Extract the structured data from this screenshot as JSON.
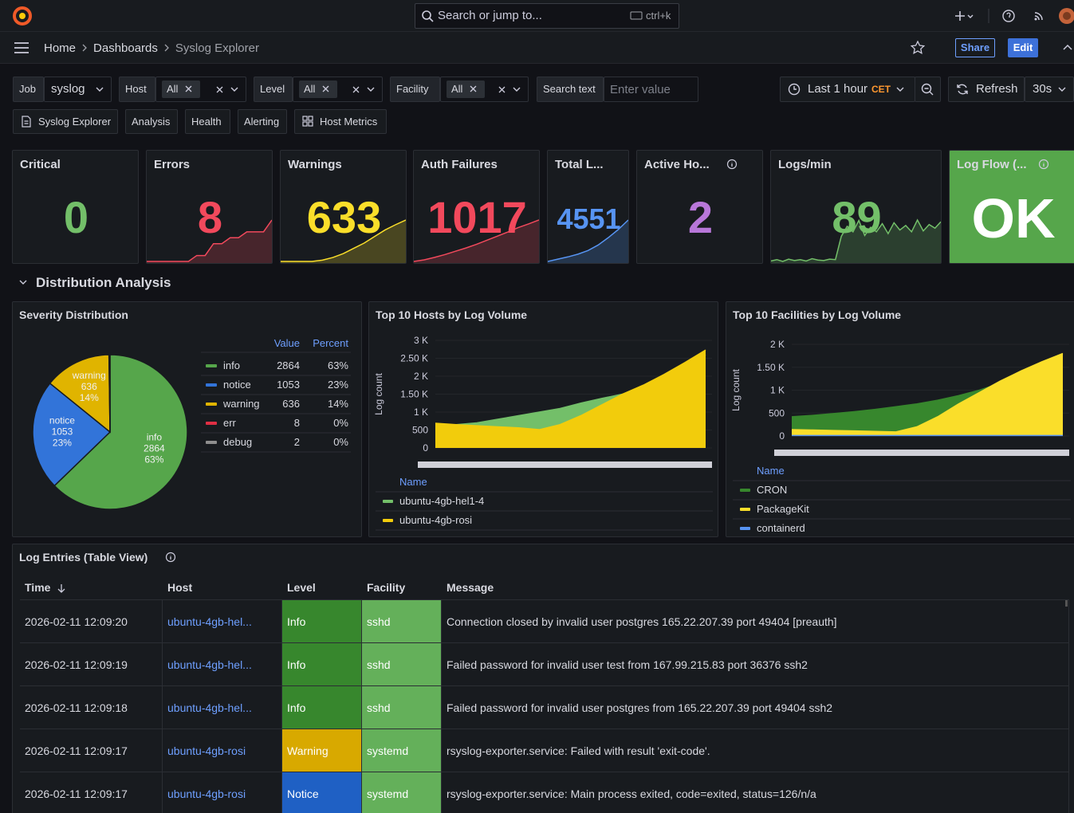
{
  "topbar": {
    "search_placeholder": "Search or jump to...",
    "shortcut": "ctrl+k"
  },
  "breadcrumbs": [
    "Home",
    "Dashboards",
    "Syslog Explorer"
  ],
  "actions": {
    "share": "Share",
    "edit": "Edit"
  },
  "variables": [
    {
      "label": "Job",
      "value": "syslog"
    },
    {
      "label": "Host",
      "value": "All"
    },
    {
      "label": "Level",
      "value": "All"
    },
    {
      "label": "Facility",
      "value": "All"
    }
  ],
  "search_text": {
    "label": "Search text",
    "placeholder": "Enter value"
  },
  "time_picker": {
    "range": "Last 1 hour",
    "timezone": "CET"
  },
  "refresh": {
    "label": "Refresh",
    "interval": "30s"
  },
  "links": [
    "Syslog Explorer",
    "Analysis",
    "Health",
    "Alerting",
    "Host Metrics"
  ],
  "stats": [
    {
      "title": "Critical",
      "value": 0,
      "color": "#73bf69"
    },
    {
      "title": "Errors",
      "value": 8,
      "color": "#f2495c",
      "sparkline": [
        1,
        1,
        1,
        1,
        1,
        1,
        2,
        2,
        4,
        4,
        5,
        5,
        6,
        6,
        6,
        8
      ]
    },
    {
      "title": "Warnings",
      "value": 633,
      "color": "#fade2a",
      "sparkline": [
        0,
        0,
        0,
        0,
        20,
        60,
        120,
        200,
        280,
        380,
        480,
        560,
        633
      ]
    },
    {
      "title": "Auth Failures",
      "value": 1017,
      "color": "#f2495c",
      "sparkline": [
        0,
        40,
        100,
        170,
        250,
        330,
        420,
        520,
        620,
        720,
        830,
        920,
        1017
      ]
    },
    {
      "title": "Total L...",
      "value": 4551,
      "color": "#5794f2",
      "sparkline": [
        0,
        250,
        500,
        800,
        1200,
        1800,
        2600,
        3500,
        4551
      ]
    },
    {
      "title": "Active Ho...",
      "value": 2,
      "color": "#b877d9"
    },
    {
      "title": "Logs/min",
      "value": 89,
      "color": "#73bf69",
      "sparkline": [
        6,
        9,
        5,
        10,
        7,
        9,
        6,
        11,
        8,
        7,
        10,
        9,
        60,
        82,
        70,
        95,
        62,
        80,
        70,
        88,
        66,
        90,
        74,
        84,
        70,
        96,
        72,
        86,
        78,
        92
      ]
    },
    {
      "title": "Log Flow (...",
      "value": "OK",
      "background": "#56a64b"
    }
  ],
  "row": {
    "title": "Distribution Analysis"
  },
  "severity": {
    "chart_data": {
      "type": "pie",
      "title": "Severity Distribution",
      "legend_columns": [
        "Value",
        "Percent"
      ],
      "categories": [
        "info",
        "notice",
        "warning",
        "err",
        "debug"
      ],
      "values": [
        2864,
        1053,
        636,
        8,
        2
      ],
      "percents": [
        "63%",
        "23%",
        "14%",
        "0%",
        "0%"
      ],
      "colors": [
        "#56a64b",
        "#3274d9",
        "#e0b400",
        "#e02f44",
        "#8e8e8e"
      ]
    }
  },
  "hosts": {
    "chart_data": {
      "type": "area",
      "title": "Top 10 Hosts by Log Volume",
      "y_label": "Log count",
      "ylim": [
        0,
        3000
      ],
      "yticks": [
        0,
        500,
        {
          "value": 1000,
          "label": "1 K"
        },
        {
          "value": 1500,
          "label": "1.50 K"
        },
        {
          "value": 2000,
          "label": "2 K"
        },
        {
          "value": 2500,
          "label": "2.50 K"
        },
        {
          "value": 3000,
          "label": "3 K"
        }
      ],
      "grid": true,
      "legend_title": "Name",
      "series": [
        {
          "name": "ubuntu-4gb-hel1-4",
          "color": "#73bf69",
          "values": [
            650,
            650,
            700,
            800,
            900,
            1000,
            1100,
            1250,
            1380,
            1500,
            1700,
            1950,
            2250,
            2600
          ]
        },
        {
          "name": "ubuntu-4gb-rosi",
          "color": "#f2cc0c",
          "values": [
            690,
            650,
            620,
            590,
            560,
            510,
            650,
            900,
            1200,
            1500,
            1750,
            2050,
            2380,
            2730
          ]
        }
      ]
    }
  },
  "facilities": {
    "chart_data": {
      "type": "area",
      "title": "Top 10 Facilities by Log Volume",
      "y_label": "Log count",
      "ylim": [
        0,
        2000
      ],
      "yticks": [
        0,
        500,
        {
          "value": 1000,
          "label": "1 K"
        },
        {
          "value": 1500,
          "label": "1.50 K"
        },
        {
          "value": 2000,
          "label": "2 K"
        }
      ],
      "grid": true,
      "legend_title": "Name",
      "series": [
        {
          "name": "CRON",
          "color": "#37872d",
          "values": [
            420,
            450,
            490,
            530,
            580,
            640,
            700,
            780,
            880,
            1000,
            1150,
            1350,
            1550,
            1750
          ]
        },
        {
          "name": "PackageKit",
          "color": "#fade2a",
          "values": [
            140,
            130,
            120,
            110,
            100,
            90,
            200,
            420,
            700,
            950,
            1200,
            1420,
            1620,
            1800
          ]
        },
        {
          "name": "containerd",
          "color": "#5794f2",
          "values": [
            10,
            10,
            10,
            10,
            10,
            10,
            10,
            10,
            10,
            10,
            10,
            10,
            10,
            10
          ]
        }
      ]
    }
  },
  "log_table": {
    "title": "Log Entries (Table View)",
    "columns": [
      "Time",
      "Host",
      "Level",
      "Facility",
      "Message"
    ],
    "rows": [
      [
        "2026-02-11 12:09:20",
        "ubuntu-4gb-hel...",
        "Info",
        "sshd",
        "Connection closed by invalid user postgres 165.22.207.39 port 49404 [preauth]"
      ],
      [
        "2026-02-11 12:09:19",
        "ubuntu-4gb-hel...",
        "Info",
        "sshd",
        "Failed password for invalid user test from 167.99.215.83 port 36376 ssh2"
      ],
      [
        "2026-02-11 12:09:18",
        "ubuntu-4gb-hel...",
        "Info",
        "sshd",
        "Failed password for invalid user postgres from 165.22.207.39 port 49404 ssh2"
      ],
      [
        "2026-02-11 12:09:17",
        "ubuntu-4gb-rosi",
        "Warning",
        "systemd",
        "rsyslog-exporter.service: Failed with result 'exit-code'."
      ],
      [
        "2026-02-11 12:09:17",
        "ubuntu-4gb-rosi",
        "Notice",
        "systemd",
        "rsyslog-exporter.service: Main process exited, code=exited, status=126/n/a"
      ]
    ],
    "level_colors": [
      "#37872d",
      "#37872d",
      "#37872d",
      "#d8a900",
      "#1f60c4"
    ],
    "facility_color": "#64b05a"
  }
}
